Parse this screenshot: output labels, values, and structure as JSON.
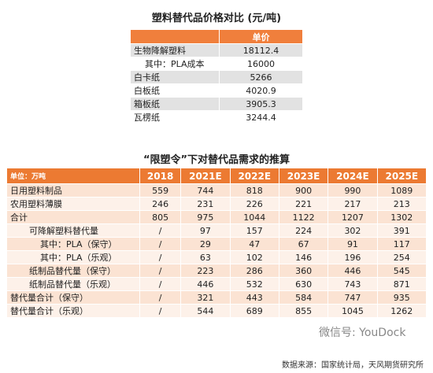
{
  "price_table": {
    "title": "塑料替代品价格对比 (元/吨)",
    "header": "单价",
    "rows": [
      [
        "生物降解塑料",
        "18112.4"
      ],
      [
        "其中：PLA成本",
        "16000"
      ],
      [
        "白卡纸",
        "5266"
      ],
      [
        "白板纸",
        "4020.9"
      ],
      [
        "箱板纸",
        "3905.3"
      ],
      [
        "瓦楞纸",
        "3244.4"
      ]
    ]
  },
  "demand_table": {
    "title": "“限塑令”下对替代品需求的推算",
    "header": [
      "单位：万吨",
      "2018",
      "2021E",
      "2022E",
      "2023E",
      "2024E",
      "2025E"
    ],
    "rows": [
      [
        "日用塑料制品",
        "559",
        "744",
        "818",
        "900",
        "990",
        "1089"
      ],
      [
        "农用塑料薄膜",
        "246",
        "231",
        "226",
        "221",
        "217",
        "213"
      ],
      [
        "合计",
        "805",
        "975",
        "1044",
        "1122",
        "1207",
        "1302"
      ],
      [
        "可降解塑料替代量",
        "/",
        "97",
        "157",
        "224",
        "302",
        "391"
      ],
      [
        "其中：PLA（保守）",
        "/",
        "29",
        "47",
        "67",
        "91",
        "117"
      ],
      [
        "其中：PLA（乐观）",
        "/",
        "63",
        "102",
        "146",
        "196",
        "254"
      ],
      [
        "纸制品替代量（保守）",
        "/",
        "223",
        "286",
        "360",
        "446",
        "545"
      ],
      [
        "纸制品替代量（乐观）",
        "/",
        "446",
        "532",
        "630",
        "743",
        "871"
      ],
      [
        "替代量合计（保守）",
        "/",
        "321",
        "443",
        "584",
        "747",
        "935"
      ],
      [
        "替代量合计（乐观）",
        "/",
        "544",
        "689",
        "855",
        "1045",
        "1262"
      ]
    ]
  },
  "watermark": "微信号: YouDock",
  "source": "数据来源：国家统计局，天风期货研究所"
}
